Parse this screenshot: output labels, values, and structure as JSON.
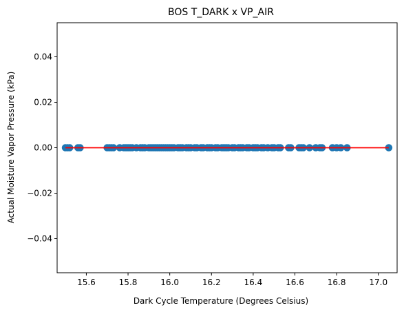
{
  "chart_data": {
    "type": "scatter",
    "title": "BOS T_DARK x VP_AIR",
    "xlabel": "Dark Cycle Temperature (Degrees Celsius)",
    "ylabel": "Actual Moisture Vapor Pressure (kPa)",
    "xlim": [
      15.46,
      17.09
    ],
    "ylim": [
      -0.055,
      0.055
    ],
    "xticks": [
      15.6,
      15.8,
      16.0,
      16.2,
      16.4,
      16.6,
      16.8,
      17.0
    ],
    "xtick_labels": [
      "15.6",
      "15.8",
      "16.0",
      "16.2",
      "16.4",
      "16.6",
      "16.8",
      "17.0"
    ],
    "yticks": [
      -0.04,
      -0.02,
      0.0,
      0.02,
      0.04
    ],
    "ytick_labels": [
      "−0.04",
      "−0.02",
      "0.00",
      "0.02",
      "0.04"
    ],
    "grid": false,
    "series": [
      {
        "marker_color": "#1f77b4",
        "x": [
          15.5,
          15.51,
          15.52,
          15.56,
          15.57,
          15.7,
          15.71,
          15.72,
          15.73,
          15.76,
          15.78,
          15.79,
          15.8,
          15.81,
          15.82,
          15.84,
          15.86,
          15.87,
          15.88,
          15.9,
          15.91,
          15.92,
          15.93,
          15.94,
          15.95,
          15.96,
          15.97,
          15.98,
          15.99,
          16.0,
          16.01,
          16.02,
          16.04,
          16.05,
          16.06,
          16.08,
          16.09,
          16.1,
          16.12,
          16.13,
          16.15,
          16.16,
          16.18,
          16.19,
          16.2,
          16.22,
          16.23,
          16.25,
          16.26,
          16.27,
          16.28,
          16.3,
          16.31,
          16.33,
          16.34,
          16.35,
          16.37,
          16.38,
          16.4,
          16.41,
          16.42,
          16.44,
          16.45,
          16.47,
          16.49,
          16.5,
          16.52,
          16.53,
          16.57,
          16.58,
          16.62,
          16.63,
          16.64,
          16.67,
          16.7,
          16.72,
          16.73,
          16.78,
          16.8,
          16.82,
          16.85,
          17.05
        ],
        "y_constant": 0.0
      }
    ],
    "fit_line": {
      "x": [
        15.5,
        17.05
      ],
      "y": [
        0.0,
        0.0
      ],
      "color": "#ff0000"
    }
  }
}
